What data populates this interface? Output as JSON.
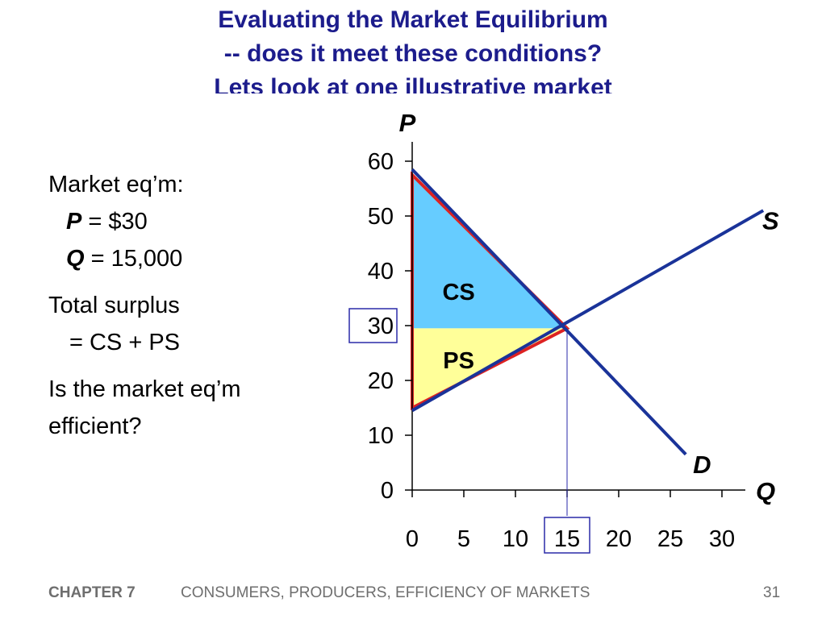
{
  "title": {
    "line1": "Evaluating the Market Equilibrium",
    "line2": "-- does it meet these conditions?",
    "line3": "Lets look at one illustrative market"
  },
  "left_text": {
    "heading": "Market eq’m:",
    "price_var": "P",
    "price_value": " = $30",
    "qty_var": "Q",
    "qty_value": " = 15,000",
    "surplus_line1": "Total surplus",
    "surplus_line2": "=  CS + PS",
    "question_line1": "Is the market eq’m",
    "question_line2": "efficient?"
  },
  "chart_data": {
    "type": "line",
    "xlabel": "Q",
    "ylabel": "P",
    "xlim": [
      0,
      32
    ],
    "ylim": [
      0,
      63
    ],
    "x_ticks": [
      0,
      5,
      10,
      15,
      20,
      25,
      30
    ],
    "y_ticks": [
      0,
      10,
      20,
      30,
      40,
      50,
      60
    ],
    "series": [
      {
        "name": "D",
        "points": [
          [
            0,
            58.5
          ],
          [
            26.5,
            6.5
          ]
        ],
        "color": "#1a3399"
      },
      {
        "name": "S",
        "points": [
          [
            0,
            14.5
          ],
          [
            34,
            51
          ]
        ],
        "color": "#1a3399"
      }
    ],
    "areas": [
      {
        "label": "CS",
        "points": [
          [
            0,
            57.5
          ],
          [
            15,
            29.5
          ],
          [
            0,
            29.5
          ]
        ],
        "color": "#66ccff"
      },
      {
        "label": "PS",
        "points": [
          [
            0,
            29.5
          ],
          [
            15,
            29.5
          ],
          [
            0,
            15
          ]
        ],
        "color": "#ffff99"
      }
    ],
    "outline_color": "#dd2222",
    "equilibrium": {
      "x": 15,
      "y": 29.5
    },
    "highlighted_ticks": {
      "x": "15",
      "y": "30"
    }
  },
  "footer": {
    "chapter": "CHAPTER 7",
    "title": "CONSUMERS, PRODUCERS, EFFICIENCY OF MARKETS",
    "page": "31"
  }
}
